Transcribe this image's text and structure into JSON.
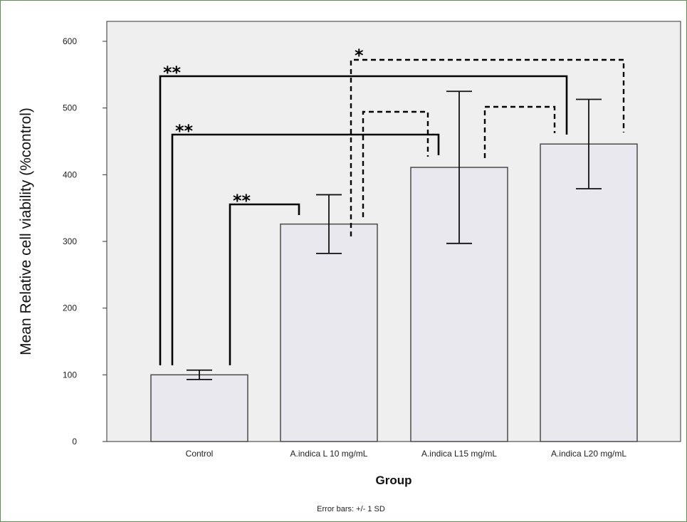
{
  "chart_data": {
    "type": "bar",
    "title": "",
    "xlabel": "Group",
    "ylabel": "Mean Relative cell viability (%control)",
    "ylim": [
      0,
      600
    ],
    "yticks": [
      0,
      100,
      200,
      300,
      400,
      500,
      600
    ],
    "categories": [
      "Control",
      "A.indica L 10 mg/mL",
      "A.indica L15 mg/mL",
      "A.indica L20 mg/mL"
    ],
    "values": [
      100,
      326,
      411,
      446
    ],
    "error_sd": [
      7,
      44,
      114,
      67
    ],
    "grid": false,
    "colors": {
      "bar_fill": "#e8e8ee",
      "bar_stroke": "#4a4a4a",
      "plot_bg": "#efefef"
    },
    "footnote": "Error bars: +/- 1 SD",
    "significance": [
      {
        "from": 0,
        "to": 1,
        "label": "**",
        "style": "solid"
      },
      {
        "from": 0,
        "to": 2,
        "label": "**",
        "style": "solid"
      },
      {
        "from": 0,
        "to": 3,
        "label": "**",
        "style": "solid"
      },
      {
        "from": 1,
        "to": 2,
        "label": "",
        "style": "dashed"
      },
      {
        "from": 2,
        "to": 3,
        "label": "",
        "style": "dashed"
      },
      {
        "from": 1,
        "to": 3,
        "label": "*",
        "style": "dashed"
      }
    ]
  }
}
